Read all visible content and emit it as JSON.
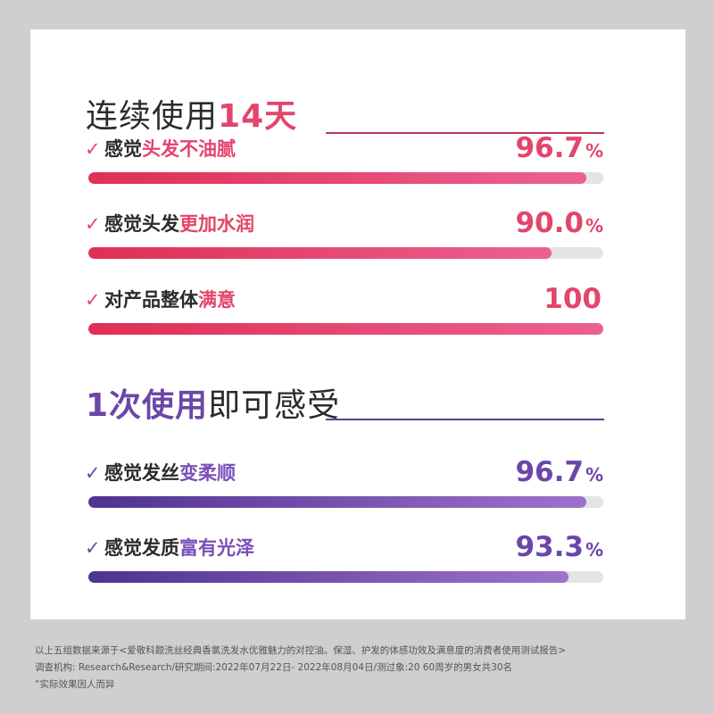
{
  "section1": {
    "title_plain": "连续使用",
    "title_highlight": "14天"
  },
  "section2": {
    "title_highlight": "1次使用",
    "title_plain": "即可感受"
  },
  "metrics1": [
    {
      "check": "✓",
      "label_plain": "感觉",
      "label_highlight": "头发不油腻",
      "value": "96.7",
      "unit": "%",
      "percent": 96.7
    },
    {
      "check": "✓",
      "label_plain": "感觉头发",
      "label_highlight": "更加水润",
      "value": "90.0",
      "unit": "%",
      "percent": 90.0
    },
    {
      "check": "✓",
      "label_plain": "对产品整体",
      "label_highlight": "满意",
      "value": "100",
      "unit": "",
      "percent": 100
    }
  ],
  "metrics2": [
    {
      "check": "✓",
      "label_plain": "感觉发丝",
      "label_highlight": "变柔顺",
      "value": "96.7",
      "unit": "%",
      "percent": 96.7
    },
    {
      "check": "✓",
      "label_plain": "感觉发质",
      "label_highlight": "富有光泽",
      "value": "93.3",
      "unit": "%",
      "percent": 93.3
    }
  ],
  "footnote": {
    "line1": "以上五组数据来源于<爱敬科题洗丝经典香氯洗发水优雅魅力的对控油。保湿、护发的体感功效及满意度的消费者使用测试报告>",
    "line2": "调查机构: Research&Research/研究期间:2022年07月22日- 2022年08月04日/测过象:20 60周岁的男女共30名",
    "line3": "“实际效果因人而异"
  },
  "colors": {
    "pink": "#e3456c",
    "purple": "#6b46a8",
    "track": "#e4e4e6",
    "background": "#cfced1"
  },
  "chart_data": {
    "type": "bar",
    "orientation": "horizontal",
    "xlim": [
      0,
      100
    ],
    "series": [
      {
        "categories": [
          "感觉头发不油腻",
          "感觉头发更加水润",
          "对产品整体满意"
        ],
        "values": [
          96.7,
          90.0,
          100
        ]
      },
      {
        "categories": [
          "感觉发丝变柔顺",
          "感觉发质富有光泽"
        ],
        "values": [
          96.7,
          93.3
        ]
      }
    ]
  }
}
